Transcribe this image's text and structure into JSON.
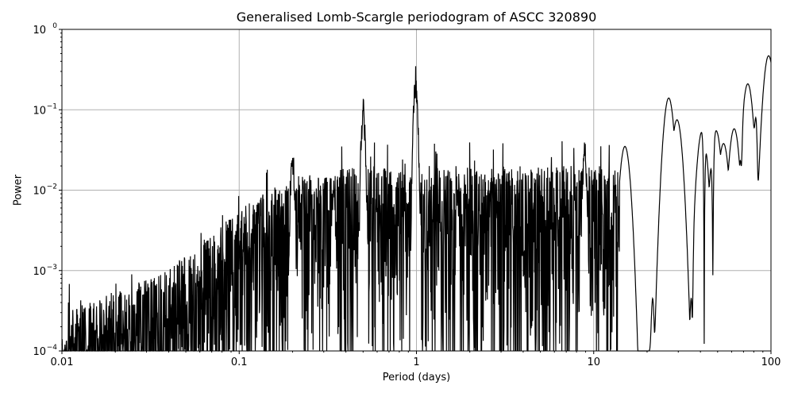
{
  "chart_data": {
    "type": "line",
    "title": "Generalised Lomb-Scargle periodogram of ASCC 320890",
    "xlabel": "Period (days)",
    "ylabel": "Power",
    "xscale": "log",
    "yscale": "log",
    "xlim": [
      0.01,
      100
    ],
    "ylim": [
      0.0001,
      1
    ],
    "x_ticks": [
      0.01,
      0.1,
      1,
      10,
      100
    ],
    "x_tick_labels": [
      "0.01",
      "0.1",
      "1",
      "10",
      "100"
    ],
    "y_ticks": [
      0.0001,
      0.001,
      0.01,
      0.1,
      1
    ],
    "y_tick_labels": [
      "10^-4",
      "10^-3",
      "10^-2",
      "10^-1",
      "10^0"
    ],
    "grid": true,
    "legend": null,
    "line_color": "#000000",
    "grid_color": "#b0b0b0",
    "notable_peaks": [
      {
        "period": 0.5,
        "power": 0.14
      },
      {
        "period": 0.99,
        "power": 0.35
      },
      {
        "period": 0.34,
        "power": 0.015
      },
      {
        "period": 0.2,
        "power": 0.035
      },
      {
        "period": 1.0,
        "power": 0.09
      },
      {
        "period": 8.9,
        "power": 0.045
      },
      {
        "period": 15.0,
        "power": 0.035
      },
      {
        "period": 26.5,
        "power": 0.14
      },
      {
        "period": 29.5,
        "power": 0.075
      },
      {
        "period": 41.0,
        "power": 0.055
      },
      {
        "period": 49.0,
        "power": 0.055
      },
      {
        "period": 54.0,
        "power": 0.038
      },
      {
        "period": 62.0,
        "power": 0.058
      },
      {
        "period": 74.0,
        "power": 0.21
      },
      {
        "period": 97.0,
        "power": 0.47
      }
    ],
    "notable_troughs": [
      {
        "period": 21.5,
        "power": 0.00045
      },
      {
        "period": 36.0,
        "power": 0.00025
      },
      {
        "period": 42.0,
        "power": 0.0001
      },
      {
        "period": 47.0,
        "power": 0.00085
      },
      {
        "period": 68.0,
        "power": 0.02
      },
      {
        "period": 82.0,
        "power": 0.08
      }
    ],
    "envelope": [
      {
        "period": 0.01,
        "power": 0.0003
      },
      {
        "period": 0.03,
        "power": 0.0008
      },
      {
        "period": 0.05,
        "power": 0.0015
      },
      {
        "period": 0.1,
        "power": 0.006
      },
      {
        "period": 0.2,
        "power": 0.015
      },
      {
        "period": 0.5,
        "power": 0.02
      },
      {
        "period": 2.0,
        "power": 0.02
      },
      {
        "period": 5.0,
        "power": 0.02
      },
      {
        "period": 10.0,
        "power": 0.02
      }
    ]
  }
}
